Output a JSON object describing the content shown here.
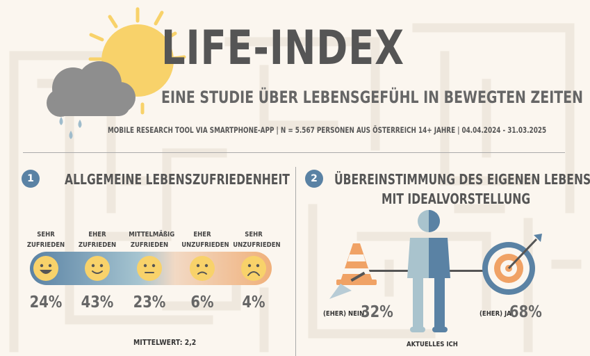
{
  "header": {
    "title": "LIFE-INDEX",
    "subtitle": "EINE STUDIE ÜBER LEBENSGEFÜHL IN BEWEGTEN ZEITEN",
    "methodology": "MOBILE RESEARCH TOOL VIA SMARTPHONE-APP | N = 5.567 PERSONEN AUS ÖSTERREICH 14+ JAHRE | 04.04.2024 - 31.03.2025",
    "icon": "sun-behind-rain-cloud"
  },
  "colors": {
    "accent_blue": "#5a82a4",
    "light_blue": "#a5c4d0",
    "orange": "#f0a265",
    "sun_yellow": "#f8d26a",
    "cloud_gray": "#8e8e8e",
    "background": "#fbf6ef"
  },
  "section1": {
    "number": "1",
    "heading": "ALLGEMEINE LEBENSZUFRIEDENHEIT",
    "scale": [
      {
        "label": "SEHR\nZUFRIEDEN",
        "value": "24%",
        "icon": "big-grin-icon"
      },
      {
        "label": "EHER\nZUFRIEDEN",
        "value": "43%",
        "icon": "smile-icon"
      },
      {
        "label": "MITTELMÄßIG\nZUFRIEDEN",
        "value": "23%",
        "icon": "neutral-face-icon"
      },
      {
        "label": "EHER\nUNZUFRIEDEN",
        "value": "6%",
        "icon": "slight-frown-icon"
      },
      {
        "label": "SEHR\nUNZUFRIEDEN",
        "value": "4%",
        "icon": "frown-icon"
      }
    ],
    "mean_label": "MITTELWERT: 2,2"
  },
  "section2": {
    "number": "2",
    "heading_line1": "ÜBEREINSTIMMUNG DES EIGENEN LEBENS",
    "heading_line2": "MIT IDEALVORSTELLUNG",
    "left": {
      "label": "(EHER) NEIN",
      "value": "32%",
      "icon": "traffic-cone-trowel-icon"
    },
    "center": {
      "label": "AKTUELLES ICH",
      "icon": "person-icon"
    },
    "right": {
      "label": "(EHER) JA",
      "value": "68%",
      "icon": "target-arrow-icon"
    }
  }
}
